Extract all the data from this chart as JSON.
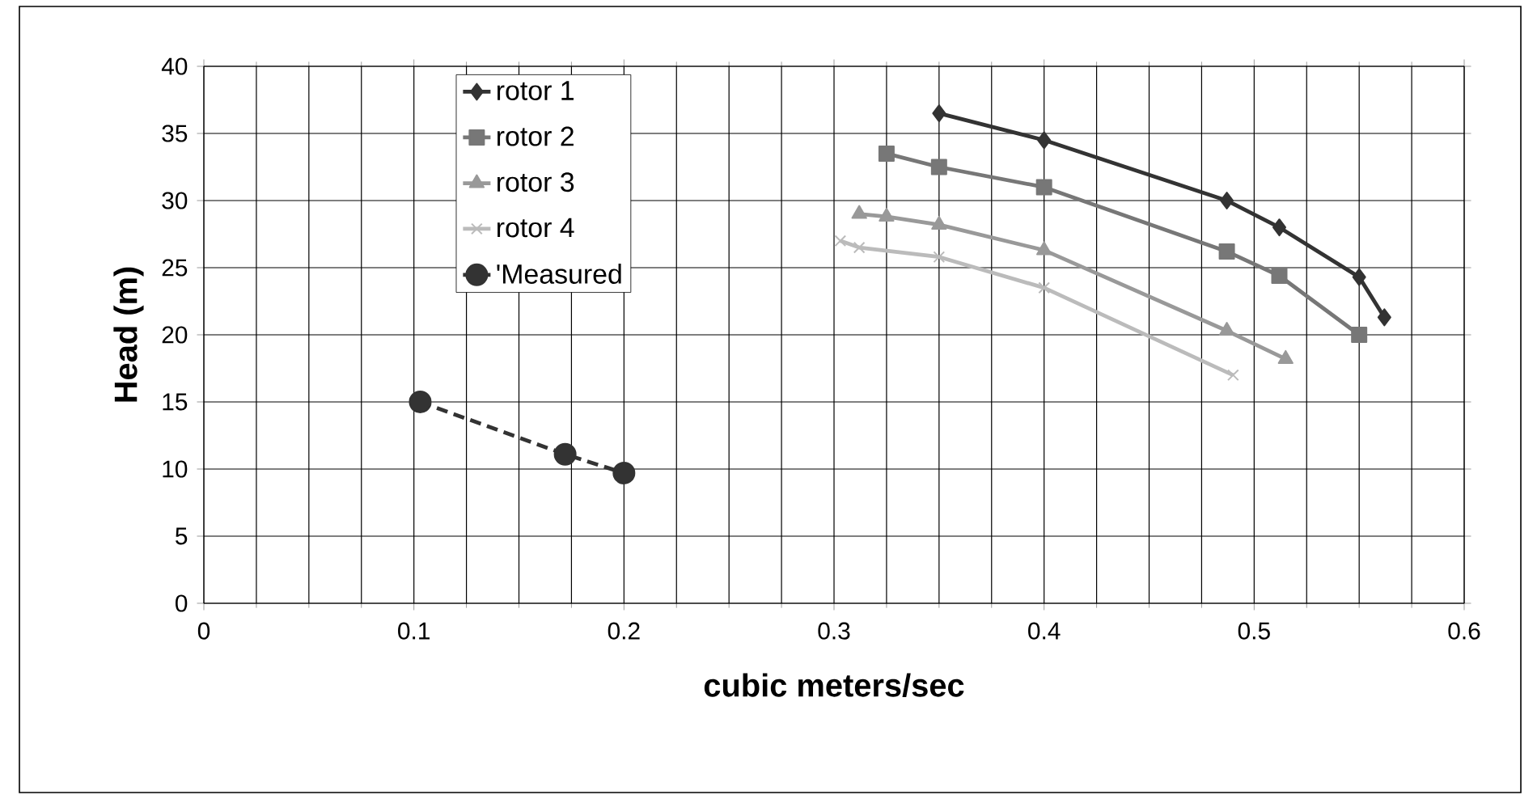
{
  "chart_data": {
    "type": "line",
    "xlabel": "cubic meters/sec",
    "ylabel": "Head (m)",
    "xlim": [
      0,
      0.6
    ],
    "ylim": [
      0,
      40
    ],
    "xticks": [
      0,
      0.1,
      0.2,
      0.3,
      0.4,
      0.5,
      0.6
    ],
    "yticks": [
      0,
      5,
      10,
      15,
      20,
      25,
      30,
      35,
      40
    ],
    "grid": true,
    "legend": "top left",
    "series": [
      {
        "name": "rotor 1",
        "color": "#333333",
        "marker": "diamond",
        "line_style": "solid",
        "x": [
          0.35,
          0.4,
          0.487,
          0.512,
          0.55,
          0.562
        ],
        "values": [
          36.5,
          34.5,
          30,
          28,
          24.3,
          21.3
        ]
      },
      {
        "name": "rotor 2",
        "color": "#777777",
        "marker": "square",
        "line_style": "solid",
        "x": [
          0.325,
          0.35,
          0.4,
          0.487,
          0.512,
          0.55
        ],
        "values": [
          33.5,
          32.5,
          31,
          26.2,
          24.4,
          20
        ]
      },
      {
        "name": "rotor 3",
        "color": "#999999",
        "marker": "triangle",
        "line_style": "solid",
        "x": [
          0.312,
          0.325,
          0.35,
          0.4,
          0.487,
          0.515
        ],
        "values": [
          29,
          28.8,
          28.2,
          26.3,
          20.3,
          18.2
        ]
      },
      {
        "name": "rotor 4",
        "color": "#bbbbbb",
        "marker": "cross",
        "line_style": "solid",
        "x": [
          0.303,
          0.312,
          0.35,
          0.4,
          0.49
        ],
        "values": [
          27,
          26.5,
          25.8,
          23.5,
          17
        ]
      },
      {
        "name": "'Measured",
        "color": "#333333",
        "marker": "circle",
        "line_style": "dashed",
        "x": [
          0.103,
          0.172,
          0.2
        ],
        "values": [
          15,
          11.1,
          9.7
        ]
      }
    ]
  }
}
